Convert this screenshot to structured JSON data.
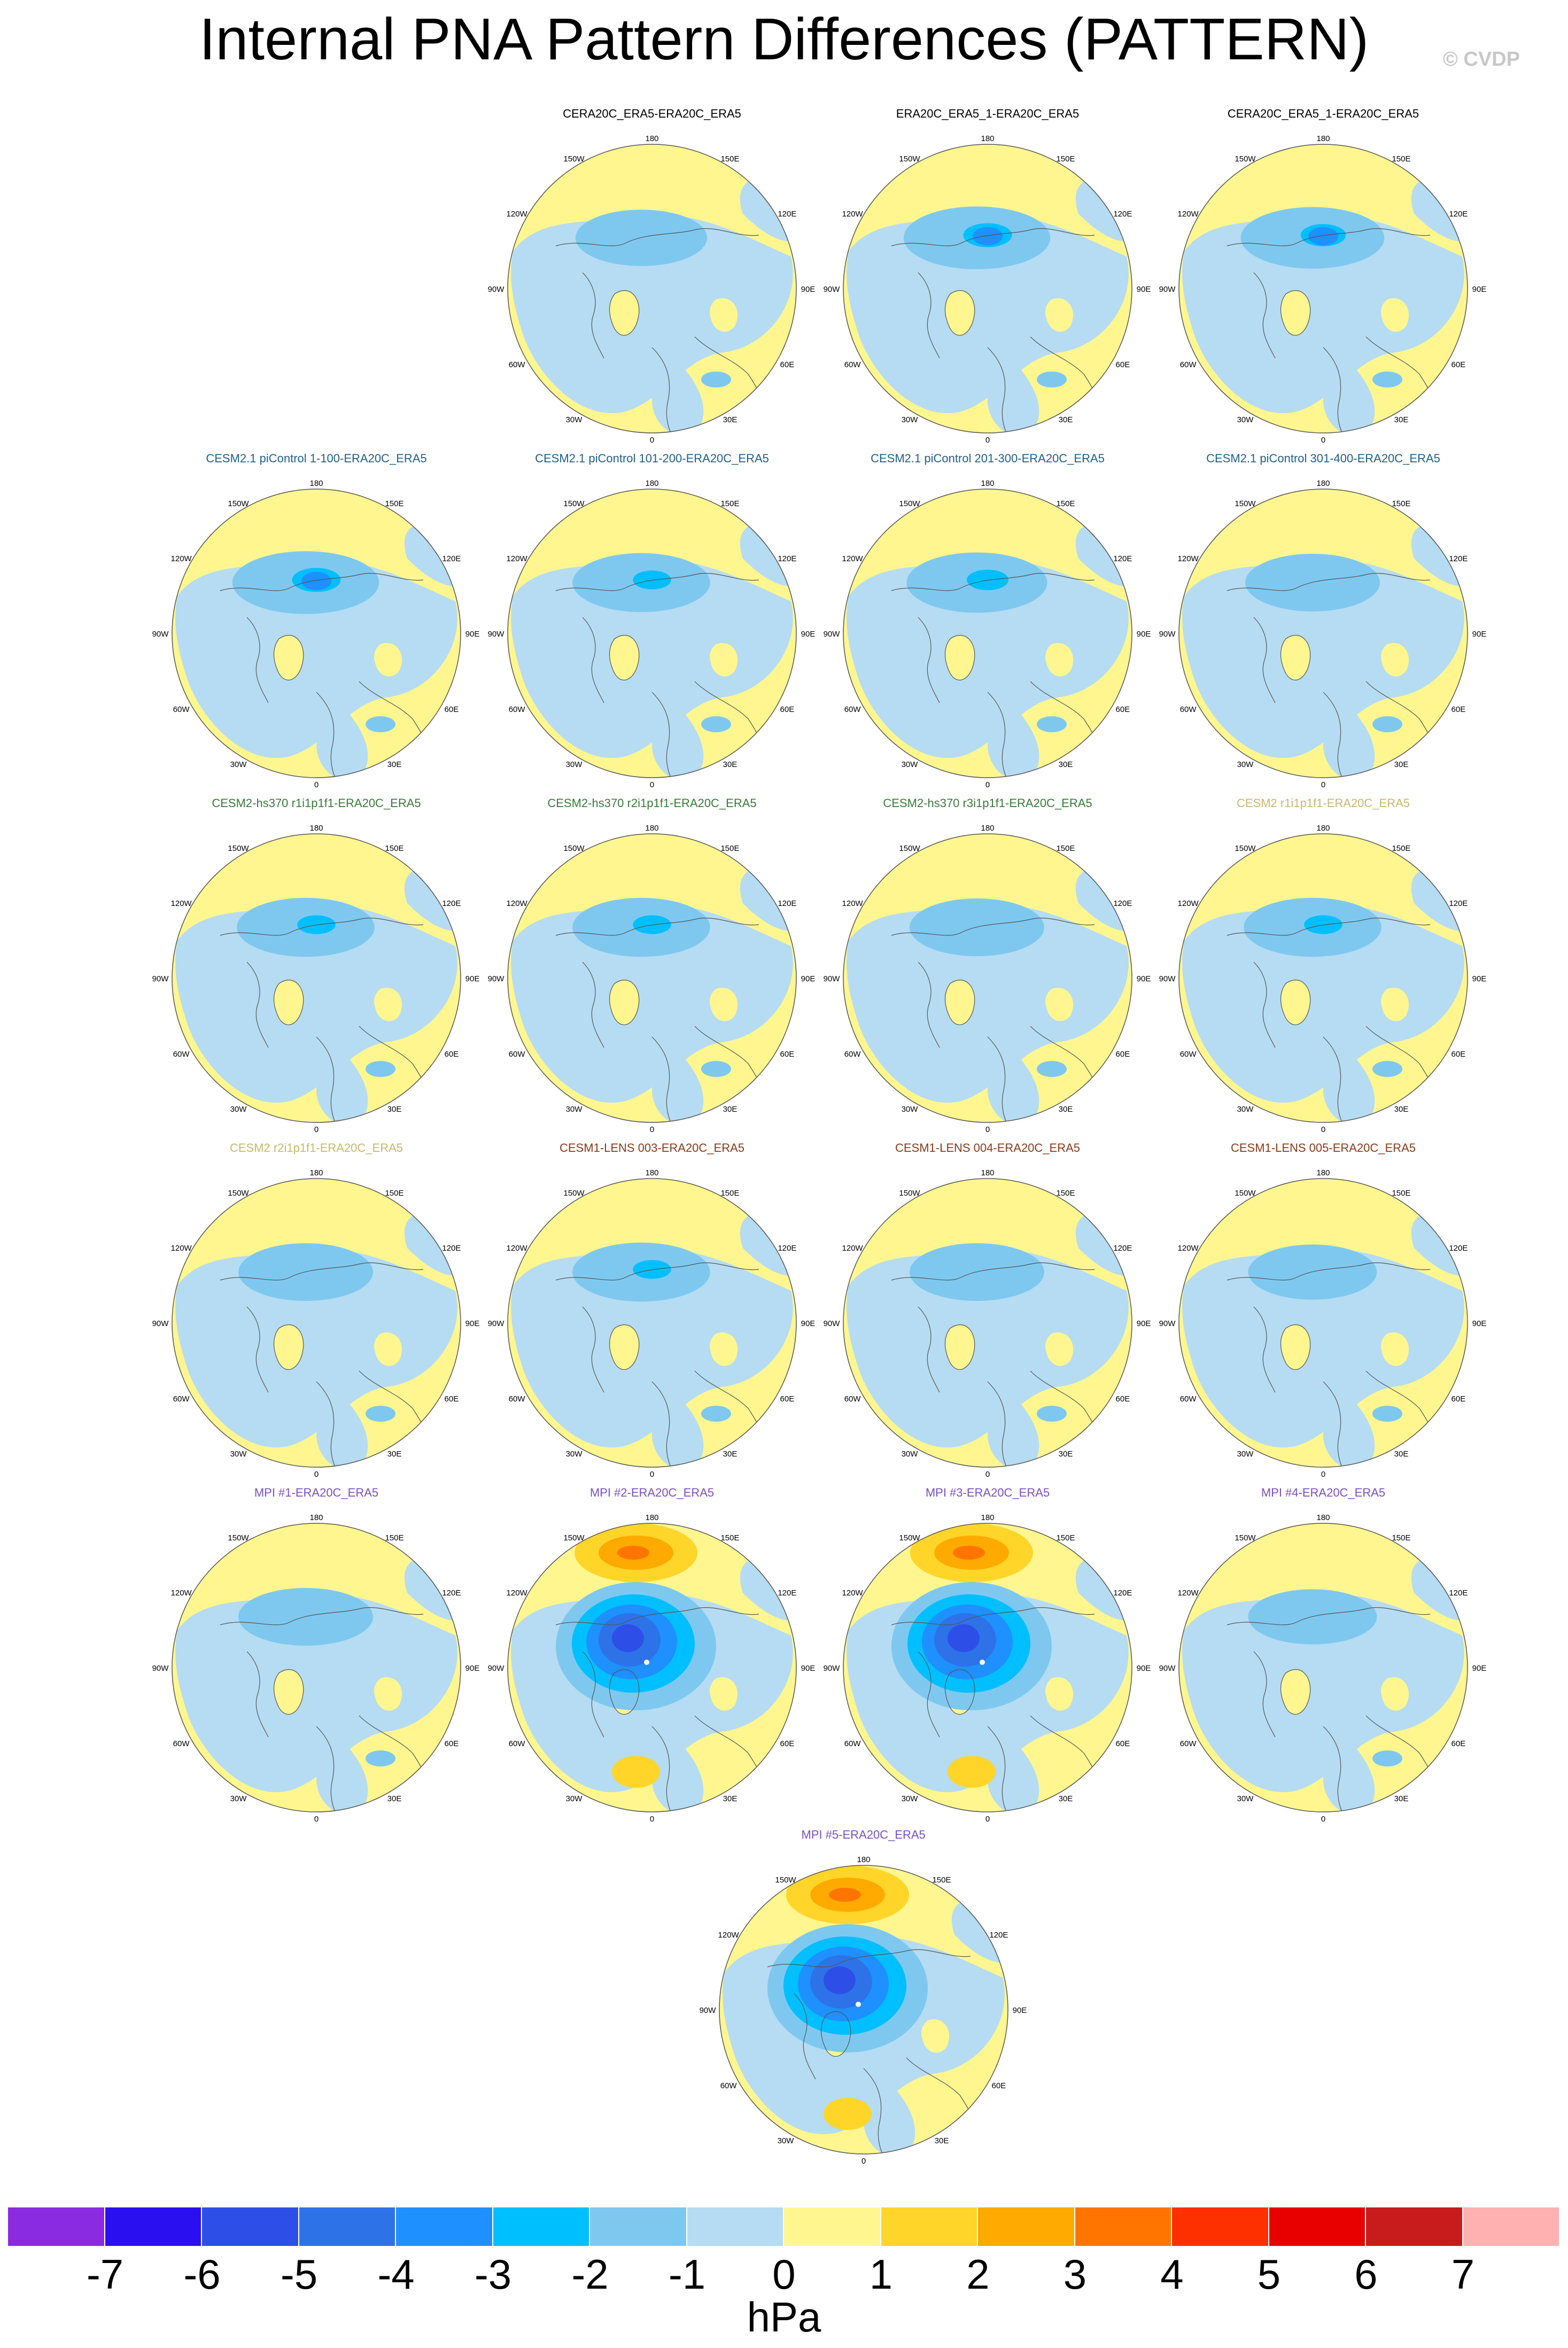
{
  "title": "Internal PNA Pattern Differences (PATTERN)",
  "watermark": "© CVDP",
  "colors": {
    "ocean_positive": "#fff68f",
    "neutral_negative": "#b5dcf2",
    "coast": "#555555",
    "row_title_colors": [
      "#000000",
      "#1f5f8b",
      "#3a7a3a",
      "#c9b86b",
      "#8b3a1a",
      "#7a4fc9"
    ]
  },
  "longitude_labels": [
    "180",
    "150E",
    "120E",
    "90E",
    "60E",
    "30E",
    "0",
    "30W",
    "60W",
    "90W",
    "120W",
    "150W"
  ],
  "panels": [
    {
      "title": "CERA20C_ERA5-ERA20C_ERA5",
      "color": "#000000",
      "strength": 0.45,
      "mode": "normal"
    },
    {
      "title": "ERA20C_ERA5_1-ERA20C_ERA5",
      "color": "#000000",
      "strength": 0.7,
      "mode": "normal"
    },
    {
      "title": "CERA20C_ERA5_1-ERA20C_ERA5",
      "color": "#000000",
      "strength": 0.65,
      "mode": "normal"
    },
    {
      "title": "CESM2.1 piControl 1-100-ERA20C_ERA5",
      "color": "#1f5f8b",
      "strength": 0.7,
      "mode": "normal"
    },
    {
      "title": "CESM2.1 piControl 101-200-ERA20C_ERA5",
      "color": "#1f5f8b",
      "strength": 0.55,
      "mode": "normal"
    },
    {
      "title": "CESM2.1 piControl 201-300-ERA20C_ERA5",
      "color": "#1f5f8b",
      "strength": 0.6,
      "mode": "normal"
    },
    {
      "title": "CESM2.1 piControl 301-400-ERA20C_ERA5",
      "color": "#1f5f8b",
      "strength": 0.5,
      "mode": "normal"
    },
    {
      "title": "CESM2-hs370 r1i1p1f1-ERA20C_ERA5",
      "color": "#3a7a3a",
      "strength": 0.55,
      "mode": "normal"
    },
    {
      "title": "CESM2-hs370 r2i1p1f1-ERA20C_ERA5",
      "color": "#3a7a3a",
      "strength": 0.55,
      "mode": "normal"
    },
    {
      "title": "CESM2-hs370 r3i1p1f1-ERA20C_ERA5",
      "color": "#3a7a3a",
      "strength": 0.5,
      "mode": "normal"
    },
    {
      "title": "CESM2 r1i1p1f1-ERA20C_ERA5",
      "color": "#c9b86b",
      "strength": 0.55,
      "mode": "normal"
    },
    {
      "title": "CESM2 r2i1p1f1-ERA20C_ERA5",
      "color": "#c9b86b",
      "strength": 0.5,
      "mode": "normal"
    },
    {
      "title": "CESM1-LENS 003-ERA20C_ERA5",
      "color": "#8b3a1a",
      "strength": 0.55,
      "mode": "normal"
    },
    {
      "title": "CESM1-LENS 004-ERA20C_ERA5",
      "color": "#8b3a1a",
      "strength": 0.5,
      "mode": "normal"
    },
    {
      "title": "CESM1-LENS 005-ERA20C_ERA5",
      "color": "#8b3a1a",
      "strength": 0.4,
      "mode": "normal"
    },
    {
      "title": "MPI #1-ERA20C_ERA5",
      "color": "#7a4fc9",
      "strength": 0.5,
      "mode": "normal"
    },
    {
      "title": "MPI #2-ERA20C_ERA5",
      "color": "#7a4fc9",
      "strength": 1.0,
      "mode": "strong"
    },
    {
      "title": "MPI #3-ERA20C_ERA5",
      "color": "#7a4fc9",
      "strength": 1.0,
      "mode": "strong"
    },
    {
      "title": "MPI #4-ERA20C_ERA5",
      "color": "#7a4fc9",
      "strength": 0.4,
      "mode": "normal"
    },
    {
      "title": "MPI #5-ERA20C_ERA5",
      "color": "#7a4fc9",
      "strength": 0.9,
      "mode": "strong"
    }
  ],
  "colorbar": {
    "colors": [
      "#8a2be2",
      "#2a10f0",
      "#2d4fe8",
      "#2e72e8",
      "#1e90ff",
      "#00bfff",
      "#7ec8f0",
      "#b5dcf2",
      "#fff68f",
      "#ffd52a",
      "#ffaa00",
      "#ff7500",
      "#ff3000",
      "#e80000",
      "#c81c1c",
      "#ffb0b0"
    ],
    "ticks": [
      "-7",
      "-6",
      "-5",
      "-4",
      "-3",
      "-2",
      "-1",
      "0",
      "1",
      "2",
      "3",
      "4",
      "5",
      "6",
      "7"
    ],
    "unit": "hPa"
  }
}
